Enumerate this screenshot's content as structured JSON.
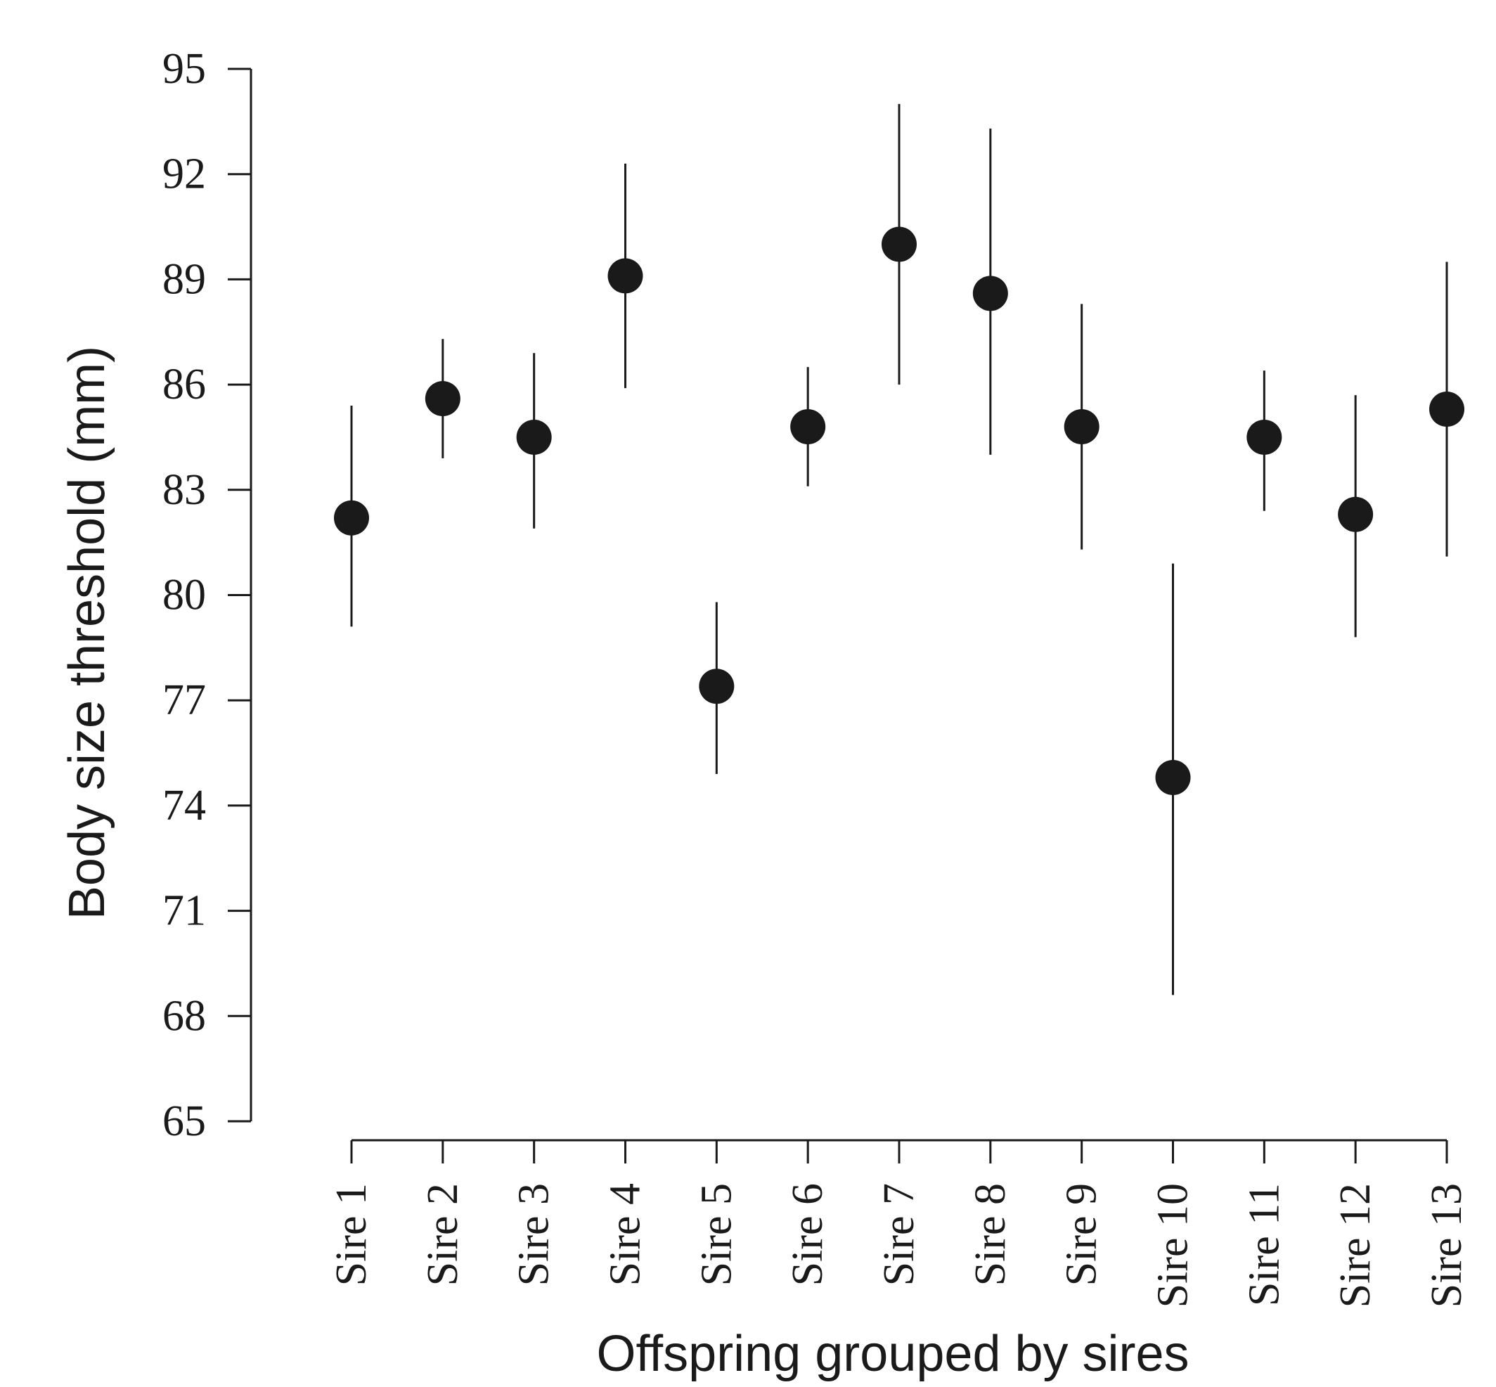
{
  "chart_data": {
    "type": "scatter",
    "xlabel": "Offspring grouped by sires",
    "ylabel": "Body size threshold (mm)",
    "ylim": [
      65,
      95
    ],
    "yticks": [
      "95",
      "92",
      "89",
      "86",
      "83",
      "80",
      "77",
      "74",
      "71",
      "68",
      "65"
    ],
    "categories": [
      "Sire 1",
      "Sire 2",
      "Sire 3",
      "Sire 4",
      "Sire 5",
      "Sire 6",
      "Sire 7",
      "Sire 8",
      "Sire 9",
      "Sire 10",
      "Sire 11",
      "Sire 12",
      "Sire 13"
    ],
    "values": [
      82.2,
      85.6,
      84.5,
      89.1,
      77.4,
      84.8,
      90.0,
      88.6,
      84.8,
      74.8,
      84.5,
      82.3,
      85.3
    ],
    "error_low": [
      79.1,
      83.9,
      81.9,
      85.9,
      74.9,
      83.1,
      86.0,
      84.0,
      81.3,
      68.6,
      82.4,
      78.8,
      81.1
    ],
    "error_high": [
      85.4,
      87.3,
      86.9,
      92.3,
      79.8,
      86.5,
      94.0,
      93.3,
      88.3,
      80.9,
      86.4,
      85.7,
      89.5
    ],
    "grid": false
  }
}
